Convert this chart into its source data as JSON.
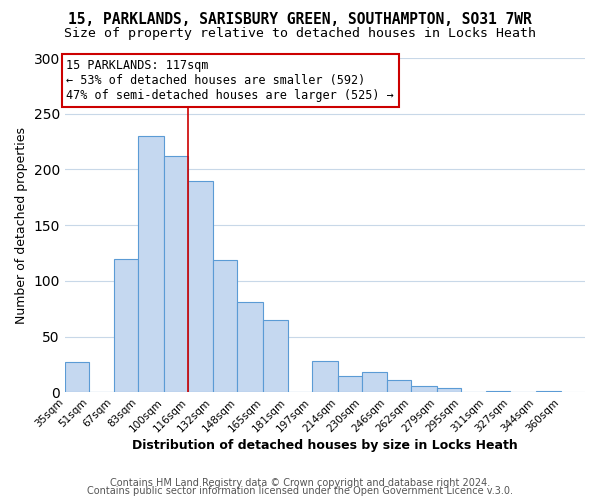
{
  "title": "15, PARKLANDS, SARISBURY GREEN, SOUTHAMPTON, SO31 7WR",
  "subtitle": "Size of property relative to detached houses in Locks Heath",
  "xlabel": "Distribution of detached houses by size in Locks Heath",
  "ylabel": "Number of detached properties",
  "bar_left_edges": [
    35,
    51,
    67,
    83,
    100,
    116,
    132,
    148,
    165,
    181,
    197,
    214,
    230,
    246,
    262,
    279,
    295,
    311,
    327,
    344
  ],
  "bar_heights": [
    27,
    0,
    120,
    230,
    212,
    190,
    119,
    81,
    65,
    0,
    28,
    15,
    18,
    11,
    6,
    4,
    0,
    1,
    0,
    1
  ],
  "bar_widths": [
    16,
    16,
    16,
    17,
    16,
    16,
    16,
    17,
    16,
    16,
    17,
    16,
    16,
    16,
    17,
    16,
    16,
    16,
    17,
    16
  ],
  "tick_labels": [
    "35sqm",
    "51sqm",
    "67sqm",
    "83sqm",
    "100sqm",
    "116sqm",
    "132sqm",
    "148sqm",
    "165sqm",
    "181sqm",
    "197sqm",
    "214sqm",
    "230sqm",
    "246sqm",
    "262sqm",
    "279sqm",
    "295sqm",
    "311sqm",
    "327sqm",
    "344sqm",
    "360sqm"
  ],
  "tick_positions": [
    35,
    51,
    67,
    83,
    100,
    116,
    132,
    148,
    165,
    181,
    197,
    214,
    230,
    246,
    262,
    279,
    295,
    311,
    327,
    344,
    360
  ],
  "ylim": [
    0,
    300
  ],
  "xlim": [
    35,
    376
  ],
  "bar_color": "#c5d8f0",
  "bar_edge_color": "#5b9bd5",
  "ref_line_x": 116,
  "ref_line_color": "#cc0000",
  "annotation_text": "15 PARKLANDS: 117sqm\n← 53% of detached houses are smaller (592)\n47% of semi-detached houses are larger (525) →",
  "annotation_box_color": "#ffffff",
  "annotation_box_edge_color": "#cc0000",
  "footer1": "Contains HM Land Registry data © Crown copyright and database right 2024.",
  "footer2": "Contains public sector information licensed under the Open Government Licence v.3.0.",
  "background_color": "#ffffff",
  "grid_color": "#c8d8e8",
  "title_fontsize": 10.5,
  "subtitle_fontsize": 9.5,
  "axis_label_fontsize": 9,
  "tick_fontsize": 7.5,
  "annotation_fontsize": 8.5,
  "footer_fontsize": 7
}
